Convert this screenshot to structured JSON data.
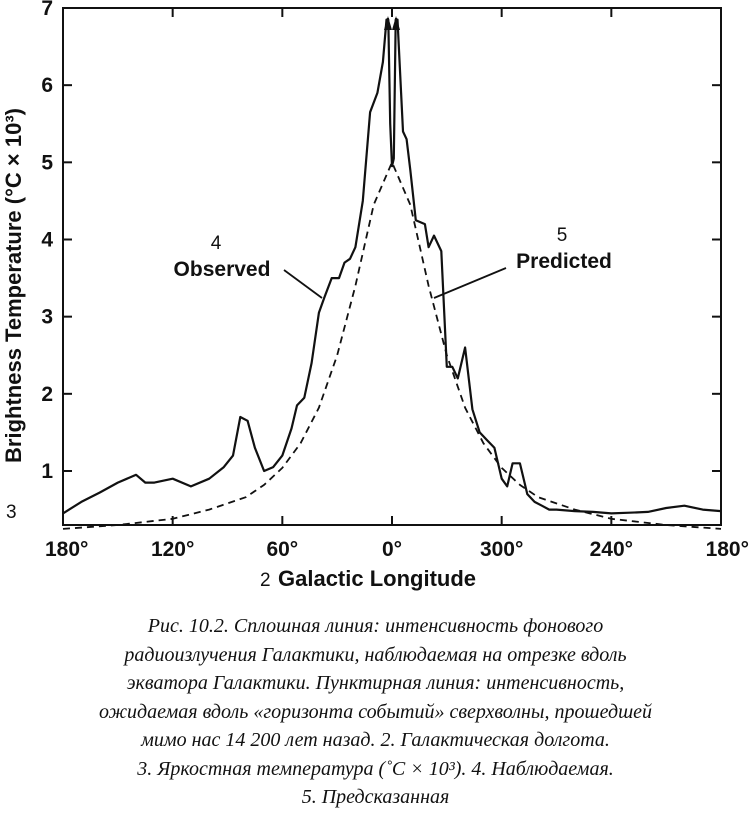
{
  "chart_data": {
    "type": "line",
    "ylabel": "Brightness Temperature",
    "ylabel_unit": "(°C × 10³)",
    "ylabel_marker": "3",
    "xlabel": "Galactic Longitude",
    "xlabel_marker": "2",
    "x_tick_labels": [
      "180°",
      "120°",
      "60°",
      "0°",
      "300°",
      "240°",
      "180°"
    ],
    "y_ticks": [
      1,
      2,
      3,
      4,
      5,
      6,
      7
    ],
    "ylim": [
      0.3,
      7
    ],
    "xlim_note": "axis runs 180° → 0° → 180° (longitude decreasing left to right through 360°)",
    "grid": false,
    "series": [
      {
        "name": "Observed",
        "name_marker": "4",
        "style": "solid",
        "x": [
          180,
          170,
          160,
          150,
          140,
          135,
          130,
          120,
          110,
          100,
          92,
          87,
          83,
          79,
          75,
          70,
          65,
          60,
          55,
          52,
          48,
          44,
          40,
          37,
          33,
          29,
          26,
          23,
          20,
          16,
          12,
          8,
          5,
          3,
          2,
          1,
          0,
          -1,
          -2,
          -3,
          -5,
          -6,
          -8,
          -10,
          -13,
          -18,
          -20,
          -23,
          -27,
          -30,
          -33,
          -36,
          -40,
          -44,
          -48,
          -52,
          -56,
          -60,
          -63,
          -66,
          -70,
          -74,
          -78,
          -82,
          -86,
          -90,
          -100,
          -110,
          -120,
          -130,
          -140,
          -150,
          -160,
          -170,
          -180
        ],
        "y": [
          0.45,
          0.6,
          0.72,
          0.85,
          0.95,
          0.85,
          0.85,
          0.9,
          0.8,
          0.9,
          1.05,
          1.2,
          1.7,
          1.65,
          1.3,
          1.0,
          1.05,
          1.2,
          1.55,
          1.85,
          1.95,
          2.4,
          3.05,
          3.25,
          3.5,
          3.5,
          3.7,
          3.75,
          3.9,
          4.5,
          5.65,
          5.9,
          6.3,
          6.85,
          6.85,
          5.5,
          4.95,
          5.05,
          6.85,
          6.85,
          5.9,
          5.4,
          5.3,
          4.9,
          4.25,
          4.2,
          3.9,
          4.05,
          3.85,
          2.35,
          2.35,
          2.2,
          2.6,
          1.8,
          1.5,
          1.4,
          1.3,
          0.9,
          0.8,
          1.1,
          1.1,
          0.7,
          0.6,
          0.55,
          0.5,
          0.5,
          0.48,
          0.47,
          0.45,
          0.46,
          0.47,
          0.52,
          0.55,
          0.5,
          0.48
        ]
      },
      {
        "name": "Predicted",
        "name_marker": "5",
        "style": "dashed",
        "x": [
          180,
          150,
          120,
          100,
          80,
          70,
          60,
          50,
          40,
          30,
          20,
          10,
          0,
          -10,
          -20,
          -30,
          -40,
          -50,
          -60,
          -70,
          -80,
          -100,
          -120,
          -150,
          -180
        ],
        "y": [
          0.25,
          0.3,
          0.38,
          0.5,
          0.66,
          0.82,
          1.04,
          1.36,
          1.82,
          2.5,
          3.4,
          4.45,
          5.0,
          4.45,
          3.4,
          2.5,
          1.82,
          1.36,
          1.04,
          0.82,
          0.66,
          0.5,
          0.38,
          0.3,
          0.25
        ]
      }
    ],
    "annotations": [
      {
        "marker": "4",
        "text": "Observed"
      },
      {
        "marker": "5",
        "text": "Predicted"
      }
    ]
  },
  "caption": {
    "lines": [
      "Рис. 10.2. Сплошная линия: интенсивность фонового",
      "радиоизлучения Галактики, наблюдаемая на отрезке вдоль",
      "экватора Галактики. Пунктирная линия: интенсивность,",
      "ожидаемая вдоль «горизонта событий» сверхволны, прошедшей",
      "мимо нас 14 200 лет назад. 2. Галактическая долгота.",
      "3. Яркостная температура (˚С × 10³). 4. Наблюдаемая.",
      "5. Предсказанная"
    ]
  }
}
